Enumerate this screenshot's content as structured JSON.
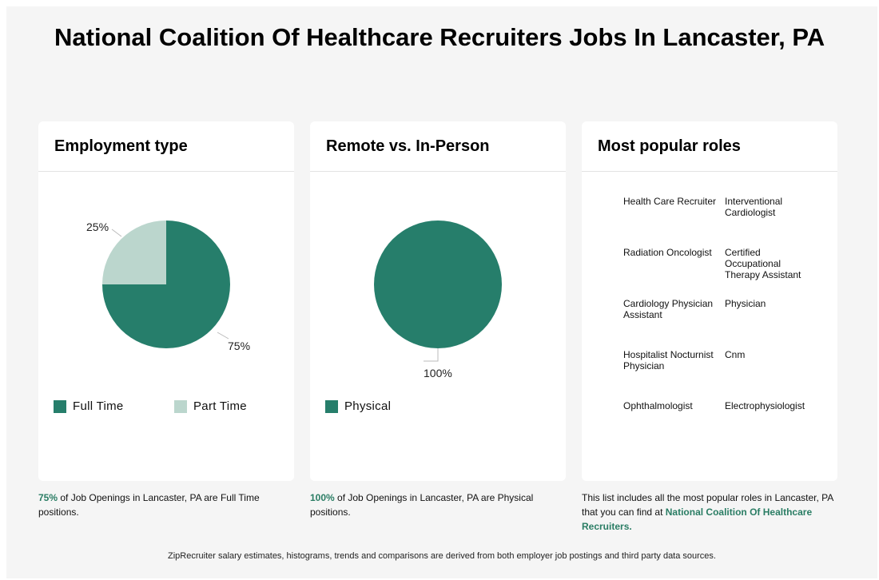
{
  "page": {
    "title": "National Coalition Of Healthcare Recruiters Jobs In Lancaster, PA"
  },
  "colors": {
    "primary": "#267e6b",
    "secondary": "#bbd6cd",
    "accent_text": "#2a7d64",
    "background": "#f5f5f5"
  },
  "employment": {
    "title": "Employment type",
    "chart_data": {
      "type": "pie",
      "slices": [
        {
          "label": "Full Time",
          "value": 75,
          "display": "75%",
          "color": "#267e6b"
        },
        {
          "label": "Part Time",
          "value": 25,
          "display": "25%",
          "color": "#bbd6cd"
        }
      ]
    },
    "legend": [
      "Full Time",
      "Part Time"
    ],
    "caption_strong": "75%",
    "caption_rest": " of Job Openings in Lancaster, PA are Full Time positions."
  },
  "remote": {
    "title": "Remote vs. In-Person",
    "chart_data": {
      "type": "pie",
      "slices": [
        {
          "label": "Physical",
          "value": 100,
          "display": "100%",
          "color": "#267e6b"
        }
      ]
    },
    "legend": [
      "Physical"
    ],
    "caption_strong": "100%",
    "caption_rest": " of Job Openings in Lancaster, PA are Physical positions."
  },
  "roles": {
    "title": "Most popular roles",
    "items": [
      "Health Care Recruiter",
      "Interventional Cardiologist",
      "Radiation Oncologist",
      "Certified Occupational Therapy Assistant",
      "Cardiology Physician Assistant",
      "Physician",
      "Hospitalist Nocturnist Physician",
      "Cnm",
      "Ophthalmologist",
      "Electrophysiologist"
    ],
    "caption_pre": "This list includes all the most popular roles in Lancaster, PA that you can find at ",
    "caption_link": "National Coalition Of Healthcare Recruiters",
    "caption_post": "."
  },
  "footer": {
    "text": "ZipRecruiter salary estimates, histograms, trends and comparisons are derived from both employer job postings and third party data sources."
  }
}
